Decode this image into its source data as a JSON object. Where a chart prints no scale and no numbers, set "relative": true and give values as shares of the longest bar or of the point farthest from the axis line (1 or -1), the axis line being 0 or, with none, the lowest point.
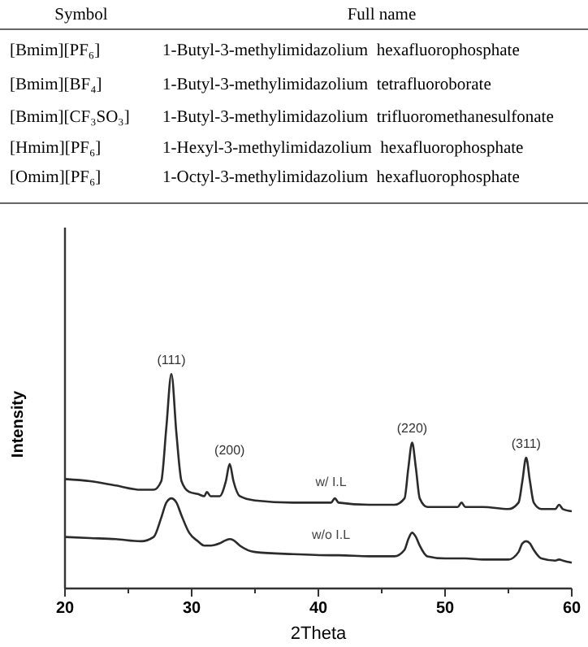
{
  "chart_data": {
    "type": "line",
    "relative": true,
    "xlabel": "2Theta",
    "ylabel": "Intensity",
    "xlim": [
      20,
      60
    ],
    "xticks": [
      20,
      {
        "value": 25,
        "label": null
      },
      30,
      {
        "value": 35,
        "label": null
      },
      40,
      {
        "value": 45,
        "label": null
      },
      50,
      {
        "value": 55,
        "label": null
      },
      60
    ],
    "x": [
      20,
      22,
      24,
      26,
      27,
      27.6,
      28,
      28.4,
      28.8,
      29.2,
      29.8,
      30.5,
      31,
      31.2,
      31.5,
      32.2,
      32.7,
      33,
      33.3,
      33.8,
      35,
      38,
      41,
      41.3,
      41.6,
      44,
      46,
      46.8,
      47.1,
      47.4,
      47.7,
      48,
      48.6,
      50,
      51,
      51.3,
      51.6,
      53,
      55,
      55.8,
      56.1,
      56.4,
      56.7,
      57,
      57.6,
      58.7,
      59,
      59.3,
      60
    ],
    "marker": "none",
    "series": [
      {
        "name": "w/ I.L",
        "color": "#2b2b2b",
        "values": [
          0.51,
          0.5,
          0.48,
          0.46,
          0.46,
          0.5,
          0.75,
          1,
          0.72,
          0.5,
          0.45,
          0.44,
          0.43,
          0.45,
          0.43,
          0.43,
          0.5,
          0.58,
          0.5,
          0.43,
          0.41,
          0.4,
          0.4,
          0.42,
          0.4,
          0.39,
          0.39,
          0.42,
          0.56,
          0.68,
          0.56,
          0.42,
          0.38,
          0.38,
          0.38,
          0.4,
          0.38,
          0.38,
          0.37,
          0.4,
          0.5,
          0.61,
          0.5,
          0.4,
          0.37,
          0.37,
          0.39,
          0.37,
          0.36
        ]
      },
      {
        "name": "w/o I.L",
        "color": "#2b2b2b",
        "values": [
          0.24,
          0.235,
          0.23,
          0.22,
          0.24,
          0.33,
          0.4,
          0.42,
          0.4,
          0.34,
          0.26,
          0.22,
          0.2,
          0.2,
          0.2,
          0.21,
          0.225,
          0.23,
          0.225,
          0.2,
          0.17,
          0.16,
          0.155,
          0.155,
          0.155,
          0.15,
          0.15,
          0.18,
          0.23,
          0.26,
          0.24,
          0.2,
          0.15,
          0.14,
          0.14,
          0.14,
          0.14,
          0.135,
          0.135,
          0.17,
          0.21,
          0.22,
          0.21,
          0.18,
          0.14,
          0.13,
          0.135,
          0.13,
          0.12
        ]
      }
    ],
    "annotations": [
      {
        "text": "(111)",
        "x": 28.4,
        "y": 1
      },
      {
        "text": "(200)",
        "x": 33,
        "y": 0.58
      },
      {
        "text": "(220)",
        "x": 47.4,
        "y": 0.68
      },
      {
        "text": "(311)",
        "x": 56.4,
        "y": 0.61
      },
      "Symbol",
      "Full name",
      "[Bmim][PF₆]",
      "1-Butyl-3-methylimidazolium  hexafluorophosphate",
      "[Bmim][BF₄]",
      "1-Butyl-3-methylimidazolium  tetrafluoroborate",
      "[Bmim][CF₃SO₃]",
      "1-Butyl-3-methylimidazolium  trifluoromethanesulfonate",
      "[Hmim][PF₆]",
      "1-Hexyl-3-methylimidazolium  hexafluorophosphate",
      "[Omim][PF₆]",
      "1-Octyl-3-methylimidazolium  hexafluorophosphate"
    ]
  }
}
